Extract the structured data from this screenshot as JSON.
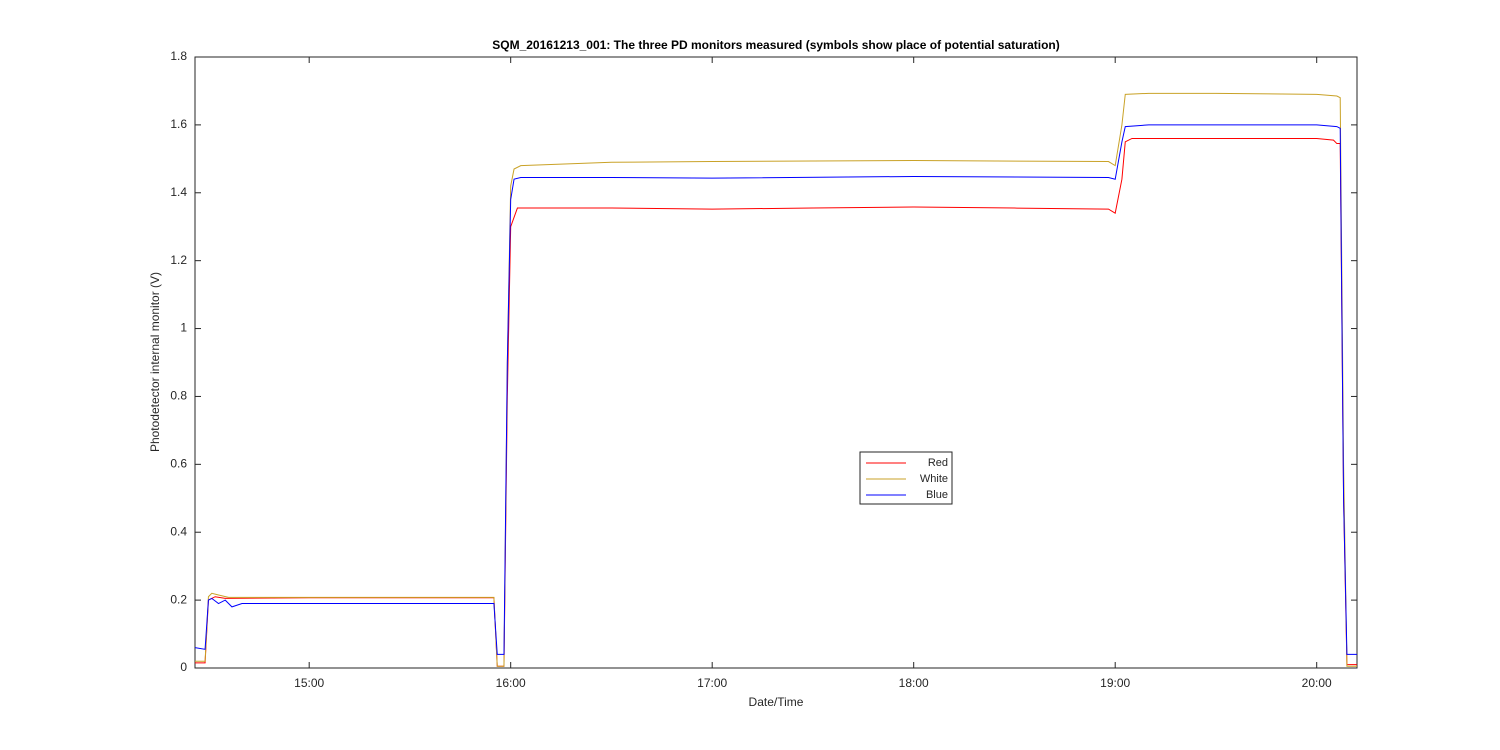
{
  "chart_data": {
    "type": "line",
    "title": "SQM_20161213_001: The three PD monitors measured (symbols show place of potential saturation)",
    "x_label": "Date/Time",
    "y_label": "Photodetector internal monitor (V)",
    "xlim": [
      "14:26",
      "20:12"
    ],
    "xticks": [
      "15:00",
      "16:00",
      "17:00",
      "18:00",
      "19:00",
      "20:00"
    ],
    "ylim": [
      0,
      1.8
    ],
    "yticks": [
      0,
      0.2,
      0.4,
      0.6,
      0.8,
      1,
      1.2,
      1.4,
      1.6,
      1.8
    ],
    "grid": false,
    "legend": "center",
    "series": [
      {
        "name": "Red",
        "color": "#ff0000",
        "x": [
          "14:26",
          "14:29",
          "14:30",
          "14:32",
          "14:35",
          "15:00",
          "15:30",
          "15:55",
          "15:56",
          "15:58",
          "15:59",
          "16:00",
          "16:02",
          "16:30",
          "17:00",
          "17:30",
          "18:00",
          "18:30",
          "18:58",
          "19:00",
          "19:02",
          "19:03",
          "19:05",
          "19:30",
          "20:00",
          "20:05",
          "20:06",
          "20:07",
          "20:08",
          "20:09",
          "20:12"
        ],
        "values": [
          0.015,
          0.015,
          0.2,
          0.21,
          0.205,
          0.207,
          0.207,
          0.207,
          0.005,
          0.005,
          0.8,
          1.3,
          1.355,
          1.355,
          1.352,
          1.355,
          1.358,
          1.355,
          1.352,
          1.34,
          1.44,
          1.55,
          1.56,
          1.56,
          1.56,
          1.555,
          1.545,
          1.545,
          0.5,
          0.01,
          0.01
        ]
      },
      {
        "name": "White",
        "color": "#c9a227",
        "x": [
          "14:26",
          "14:29",
          "14:30",
          "14:31",
          "14:33",
          "14:36",
          "15:00",
          "15:55",
          "15:56",
          "15:58",
          "15:59",
          "16:00",
          "16:01",
          "16:03",
          "16:30",
          "17:00",
          "18:00",
          "18:58",
          "19:00",
          "19:02",
          "19:03",
          "19:10",
          "19:30",
          "20:00",
          "20:06",
          "20:07",
          "20:08",
          "20:09",
          "20:12"
        ],
        "values": [
          0.02,
          0.02,
          0.21,
          0.22,
          0.215,
          0.208,
          0.208,
          0.208,
          0.005,
          0.005,
          0.9,
          1.42,
          1.47,
          1.48,
          1.49,
          1.492,
          1.495,
          1.492,
          1.48,
          1.6,
          1.69,
          1.693,
          1.693,
          1.69,
          1.685,
          1.68,
          0.6,
          0.005,
          0.005
        ]
      },
      {
        "name": "Blue",
        "color": "#0000ff",
        "x": [
          "14:26",
          "14:29",
          "14:30",
          "14:31",
          "14:33",
          "14:35",
          "14:37",
          "14:40",
          "15:00",
          "15:30",
          "15:55",
          "15:56",
          "15:58",
          "15:59",
          "16:00",
          "16:01",
          "16:03",
          "16:30",
          "17:00",
          "18:00",
          "18:58",
          "19:00",
          "19:02",
          "19:03",
          "19:10",
          "19:30",
          "20:00",
          "20:06",
          "20:07",
          "20:08",
          "20:09",
          "20:12"
        ],
        "values": [
          0.06,
          0.055,
          0.2,
          0.205,
          0.19,
          0.2,
          0.18,
          0.19,
          0.19,
          0.19,
          0.19,
          0.04,
          0.04,
          0.9,
          1.38,
          1.44,
          1.445,
          1.445,
          1.443,
          1.448,
          1.445,
          1.44,
          1.55,
          1.595,
          1.6,
          1.6,
          1.6,
          1.595,
          1.59,
          0.5,
          0.04,
          0.04
        ]
      }
    ]
  }
}
